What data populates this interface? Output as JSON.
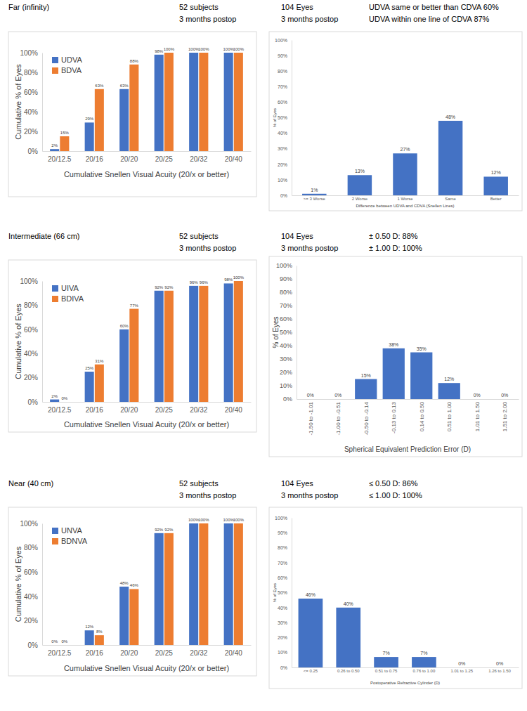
{
  "chart_data": [
    {
      "type": "bar",
      "title": "Far (infinity)",
      "subtitle": [
        "52 subjects",
        "3 months postop"
      ],
      "x_label": "Cumulative Snellen Visual Acuity (20/x or better)",
      "y_label": "Cumulative % of Eyes",
      "categories": [
        "20/12.5",
        "20/16",
        "20/20",
        "20/25",
        "20/32",
        "20/40"
      ],
      "series": [
        {
          "name": "UDVA",
          "color": "#4472c4",
          "values": [
            2,
            29,
            63,
            98,
            100,
            100
          ],
          "value_labels": [
            "2%",
            "29%",
            "63%",
            "98%",
            "100%",
            "100%"
          ]
        },
        {
          "name": "BDVA",
          "color": "#ed7d31",
          "values": [
            15,
            63,
            88,
            100,
            100,
            100
          ],
          "value_labels": [
            "15%",
            "63%",
            "88%",
            "100%",
            "100%",
            "100%"
          ]
        }
      ],
      "ylim": [
        0,
        100
      ],
      "yticks": [
        {
          "value": 0,
          "label": "0%"
        },
        {
          "value": 20,
          "label": "20%"
        },
        {
          "value": 40,
          "label": "40%"
        },
        {
          "value": 60,
          "label": "60%"
        },
        {
          "value": 80,
          "label": "80%"
        },
        {
          "value": 100,
          "label": "100%"
        }
      ],
      "grid": false,
      "legend": "top-left",
      "data_labels": true
    },
    {
      "type": "bar",
      "subtitle": [
        "104 Eyes",
        "3 months postop"
      ],
      "annotations": [
        "UDVA same or better than CDVA 60%",
        "UDVA within one line of CDVA 87%"
      ],
      "x_label": "Difference between UDVA and CDVA (Snellen Lines)",
      "y_label": "% of Eyes",
      "categories": [
        ">= 3 Worse",
        "2 Worse",
        "1 Worse",
        "Same",
        "Better"
      ],
      "values": [
        1,
        13,
        27,
        48,
        12
      ],
      "value_labels": [
        "1%",
        "13%",
        "27%",
        "48%",
        "12%"
      ],
      "color": "#4472c4",
      "ylim": [
        0,
        100
      ],
      "yticks": [
        {
          "value": 0,
          "label": "0%"
        },
        {
          "value": 10,
          "label": "10%"
        },
        {
          "value": 20,
          "label": "20%"
        },
        {
          "value": 30,
          "label": "30%"
        },
        {
          "value": 40,
          "label": "40%"
        },
        {
          "value": 50,
          "label": "50%"
        },
        {
          "value": 60,
          "label": "60%"
        },
        {
          "value": 70,
          "label": "70%"
        },
        {
          "value": 80,
          "label": "80%"
        },
        {
          "value": 90,
          "label": "90%"
        },
        {
          "value": 100,
          "label": "100%"
        }
      ],
      "grid": false,
      "data_labels": true
    },
    {
      "type": "bar",
      "title": "Intermediate (66 cm)",
      "subtitle": [
        "52 subjects",
        "3 months postop"
      ],
      "x_label": "Cumulative Snellen Visual Acuity (20/x or better)",
      "y_label": "Cumulative % of Eyes",
      "categories": [
        "20/12.5",
        "20/16",
        "20/20",
        "20/25",
        "20/32",
        "20/40"
      ],
      "series": [
        {
          "name": "UIVA",
          "color": "#4472c4",
          "values": [
            2,
            25,
            60,
            92,
            96,
            98
          ],
          "value_labels": [
            "2%",
            "25%",
            "60%",
            "92%",
            "96%",
            "98%"
          ]
        },
        {
          "name": "BDIVA",
          "color": "#ed7d31",
          "values": [
            0,
            31,
            77,
            92,
            96,
            100
          ],
          "value_labels": [
            "0%",
            "31%",
            "77%",
            "92%",
            "96%",
            "100%"
          ]
        }
      ],
      "ylim": [
        0,
        100
      ],
      "yticks": [
        {
          "value": 0,
          "label": "0%"
        },
        {
          "value": 20,
          "label": "20%"
        },
        {
          "value": 40,
          "label": "40%"
        },
        {
          "value": 60,
          "label": "60%"
        },
        {
          "value": 80,
          "label": "80%"
        },
        {
          "value": 100,
          "label": "100%"
        }
      ],
      "grid": false,
      "legend": "top-left",
      "data_labels": true
    },
    {
      "type": "bar",
      "subtitle": [
        "104 Eyes",
        "3 months postop"
      ],
      "annotations": [
        "± 0.50 D: 88%",
        "± 1.00 D: 100%"
      ],
      "x_label": "Spherical Equivalent Prediction Error (D)",
      "y_label": "% of Eyes",
      "categories": [
        "-1.50 to -1.01",
        "-1.00 to -0.51",
        "-0.50 to -0.14",
        "-0.13 to 0.13",
        "0.14 to 0.50",
        "0.51 to 1.00",
        "1.01 to 1.50",
        "1.51 to 2.00"
      ],
      "values": [
        0,
        0,
        15,
        38,
        35,
        12,
        0,
        0
      ],
      "value_labels": [
        "0%",
        "0%",
        "15%",
        "38%",
        "35%",
        "12%",
        "0%",
        "0%"
      ],
      "color": "#4472c4",
      "ylim": [
        0,
        100
      ],
      "yticks": [
        {
          "value": 0,
          "label": "0%"
        },
        {
          "value": 10,
          "label": "10%"
        },
        {
          "value": 20,
          "label": "20%"
        },
        {
          "value": 30,
          "label": "30%"
        },
        {
          "value": 40,
          "label": "40%"
        },
        {
          "value": 50,
          "label": "50%"
        },
        {
          "value": 60,
          "label": "60%"
        },
        {
          "value": 70,
          "label": "70%"
        },
        {
          "value": 80,
          "label": "80%"
        },
        {
          "value": 90,
          "label": "90%"
        },
        {
          "value": 100,
          "label": "100%"
        }
      ],
      "grid": false,
      "data_labels": true
    },
    {
      "type": "bar",
      "title": "Near (40 cm)",
      "subtitle": [
        "52 subjects",
        "3 months postop"
      ],
      "x_label": "Cumulative Snellen Visual Acuity (20/x or better)",
      "y_label": "Cumulative % of Eyes",
      "categories": [
        "20/12.5",
        "20/16",
        "20/20",
        "20/25",
        "20/32",
        "20/40"
      ],
      "series": [
        {
          "name": "UNVA",
          "color": "#4472c4",
          "values": [
            0,
            12,
            48,
            92,
            100,
            100
          ],
          "value_labels": [
            "0%",
            "12%",
            "48%",
            "92%",
            "100%",
            "100%"
          ]
        },
        {
          "name": "BDNVA",
          "color": "#ed7d31",
          "values": [
            0,
            8,
            46,
            92,
            100,
            100
          ],
          "value_labels": [
            "0%",
            "8%",
            "46%",
            "92%",
            "100%",
            "100%"
          ]
        }
      ],
      "ylim": [
        0,
        100
      ],
      "yticks": [
        {
          "value": 0,
          "label": "0%"
        },
        {
          "value": 20,
          "label": "20%"
        },
        {
          "value": 40,
          "label": "40%"
        },
        {
          "value": 60,
          "label": "60%"
        },
        {
          "value": 80,
          "label": "80%"
        },
        {
          "value": 100,
          "label": "100%"
        }
      ],
      "grid": false,
      "legend": "top-left",
      "data_labels": true
    },
    {
      "type": "bar",
      "subtitle": [
        "104 Eyes",
        "3 months postop"
      ],
      "annotations": [
        "≤ 0.50 D: 86%",
        "≤ 1.00 D: 100%"
      ],
      "x_label": "Postoperative Refractive Cylinder (D)",
      "y_label": "% of Eyes",
      "categories": [
        "<= 0.25",
        "0.26 to 0.50",
        "0.51 to 0.75",
        "0.76 to 1.00",
        "1.01 to 1.25",
        "1.26 to 1.50"
      ],
      "values": [
        46,
        40,
        7,
        7,
        0,
        0
      ],
      "value_labels": [
        "46%",
        "40%",
        "7%",
        "7%",
        "0%",
        "0%"
      ],
      "color": "#4472c4",
      "ylim": [
        0,
        100
      ],
      "yticks": [
        {
          "value": 0,
          "label": "0%"
        },
        {
          "value": 10,
          "label": "10%"
        },
        {
          "value": 20,
          "label": "20%"
        },
        {
          "value": 30,
          "label": "30%"
        },
        {
          "value": 40,
          "label": "40%"
        },
        {
          "value": 50,
          "label": "50%"
        },
        {
          "value": 60,
          "label": "60%"
        },
        {
          "value": 70,
          "label": "70%"
        },
        {
          "value": 80,
          "label": "80%"
        },
        {
          "value": 90,
          "label": "90%"
        },
        {
          "value": 100,
          "label": "100%"
        }
      ],
      "grid": false,
      "data_labels": true
    }
  ]
}
